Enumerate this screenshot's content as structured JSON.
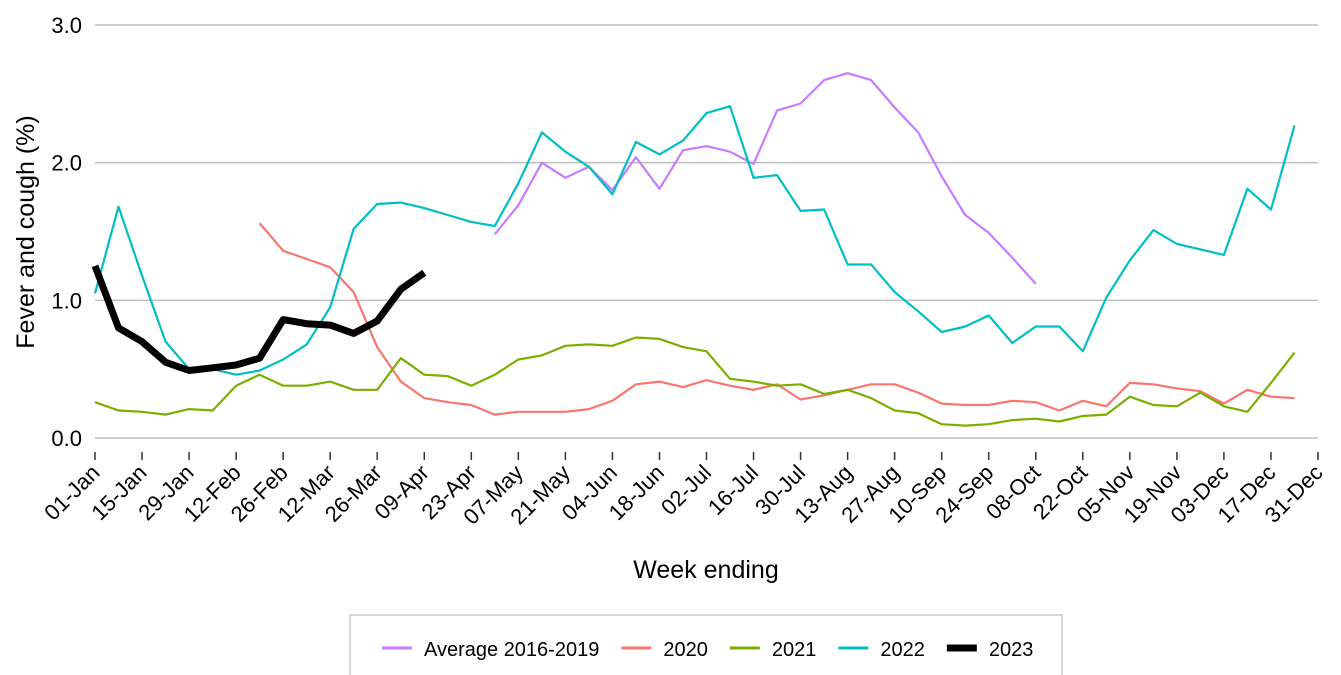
{
  "chart_data": {
    "type": "line",
    "x_label": "Week ending",
    "y_label": "Fever and cough (%)",
    "categories": [
      "01-Jan",
      null,
      "15-Jan",
      null,
      "29-Jan",
      null,
      "12-Feb",
      null,
      "26-Feb",
      null,
      "12-Mar",
      null,
      "26-Mar",
      null,
      "09-Apr",
      null,
      "23-Apr",
      null,
      "07-May",
      null,
      "21-May",
      null,
      "04-Jun",
      null,
      "18-Jun",
      null,
      "02-Jul",
      null,
      "16-Jul",
      null,
      "30-Jul",
      null,
      "13-Aug",
      null,
      "27-Aug",
      null,
      "10-Sep",
      null,
      "24-Sep",
      null,
      "08-Oct",
      null,
      "22-Oct",
      null,
      "05-Nov",
      null,
      "19-Nov",
      null,
      "03-Dec",
      null,
      "17-Dec",
      null,
      "31-Dec"
    ],
    "ylim": [
      0,
      3
    ],
    "yticks": [
      {
        "value": 0,
        "label": "0.0"
      },
      {
        "value": 1,
        "label": "1.0"
      },
      {
        "value": 2,
        "label": "2.0"
      },
      {
        "value": 3,
        "label": "3.0"
      }
    ],
    "grid": true,
    "legend": "bottom",
    "series": [
      {
        "name": "Average 2016-2019",
        "color": "#c77cff",
        "values": [
          null,
          null,
          null,
          null,
          null,
          null,
          null,
          null,
          null,
          null,
          null,
          null,
          null,
          null,
          null,
          null,
          null,
          1.48,
          1.69,
          2.0,
          1.89,
          1.97,
          1.8,
          2.04,
          1.81,
          2.09,
          2.12,
          2.08,
          1.99,
          2.38,
          2.43,
          2.6,
          2.65,
          2.6,
          2.4,
          2.22,
          1.9,
          1.62,
          1.49,
          1.31,
          1.12,
          null,
          null,
          null,
          null,
          null,
          null,
          null,
          null,
          null,
          null,
          null,
          null
        ]
      },
      {
        "name": "2020",
        "color": "#f8766d",
        "values": [
          null,
          null,
          null,
          null,
          null,
          null,
          null,
          1.56,
          1.36,
          1.3,
          1.24,
          1.06,
          0.66,
          0.41,
          0.29,
          0.26,
          0.24,
          0.17,
          0.19,
          0.19,
          0.19,
          0.21,
          0.27,
          0.39,
          0.41,
          0.37,
          0.42,
          0.38,
          0.35,
          0.39,
          0.28,
          0.31,
          0.35,
          0.39,
          0.39,
          0.33,
          0.25,
          0.24,
          0.24,
          0.27,
          0.26,
          0.2,
          0.27,
          0.23,
          0.4,
          0.39,
          0.36,
          0.34,
          0.25,
          0.35,
          0.3,
          0.29,
          null
        ]
      },
      {
        "name": "2021",
        "color": "#7cae00",
        "values": [
          0.26,
          0.2,
          0.19,
          0.17,
          0.21,
          0.2,
          0.38,
          0.46,
          0.38,
          0.38,
          0.41,
          0.35,
          0.35,
          0.58,
          0.46,
          0.45,
          0.38,
          0.46,
          0.57,
          0.6,
          0.67,
          0.68,
          0.67,
          0.73,
          0.72,
          0.66,
          0.63,
          0.43,
          0.41,
          0.38,
          0.39,
          0.32,
          0.35,
          0.29,
          0.2,
          0.18,
          0.1,
          0.09,
          0.1,
          0.13,
          0.14,
          0.12,
          0.16,
          0.17,
          0.3,
          0.24,
          0.23,
          0.33,
          0.23,
          0.19,
          0.4,
          0.62,
          null
        ]
      },
      {
        "name": "2022",
        "color": "#00bfc4",
        "values": [
          1.05,
          1.68,
          1.18,
          0.7,
          0.5,
          0.5,
          0.46,
          0.49,
          0.57,
          0.68,
          0.95,
          1.52,
          1.7,
          1.71,
          1.67,
          1.62,
          1.57,
          1.54,
          1.85,
          2.22,
          2.08,
          1.97,
          1.77,
          2.15,
          2.06,
          2.16,
          2.36,
          2.41,
          1.89,
          1.91,
          1.65,
          1.66,
          1.26,
          1.26,
          1.06,
          0.92,
          0.77,
          0.81,
          0.89,
          0.69,
          0.81,
          0.81,
          0.63,
          1.02,
          1.29,
          1.51,
          1.41,
          1.37,
          1.33,
          1.81,
          1.66,
          2.27,
          null
        ]
      },
      {
        "name": "2023",
        "color": "#000000",
        "values": [
          1.25,
          0.8,
          0.7,
          0.55,
          0.49,
          0.51,
          0.53,
          0.58,
          0.86,
          0.83,
          0.82,
          0.76,
          0.85,
          1.08,
          1.2,
          null,
          null,
          null,
          null,
          null,
          null,
          null,
          null,
          null,
          null,
          null,
          null,
          null,
          null,
          null,
          null,
          null,
          null,
          null,
          null,
          null,
          null,
          null,
          null,
          null,
          null,
          null,
          null,
          null,
          null,
          null,
          null,
          null,
          null,
          null,
          null,
          null,
          null
        ]
      }
    ]
  }
}
